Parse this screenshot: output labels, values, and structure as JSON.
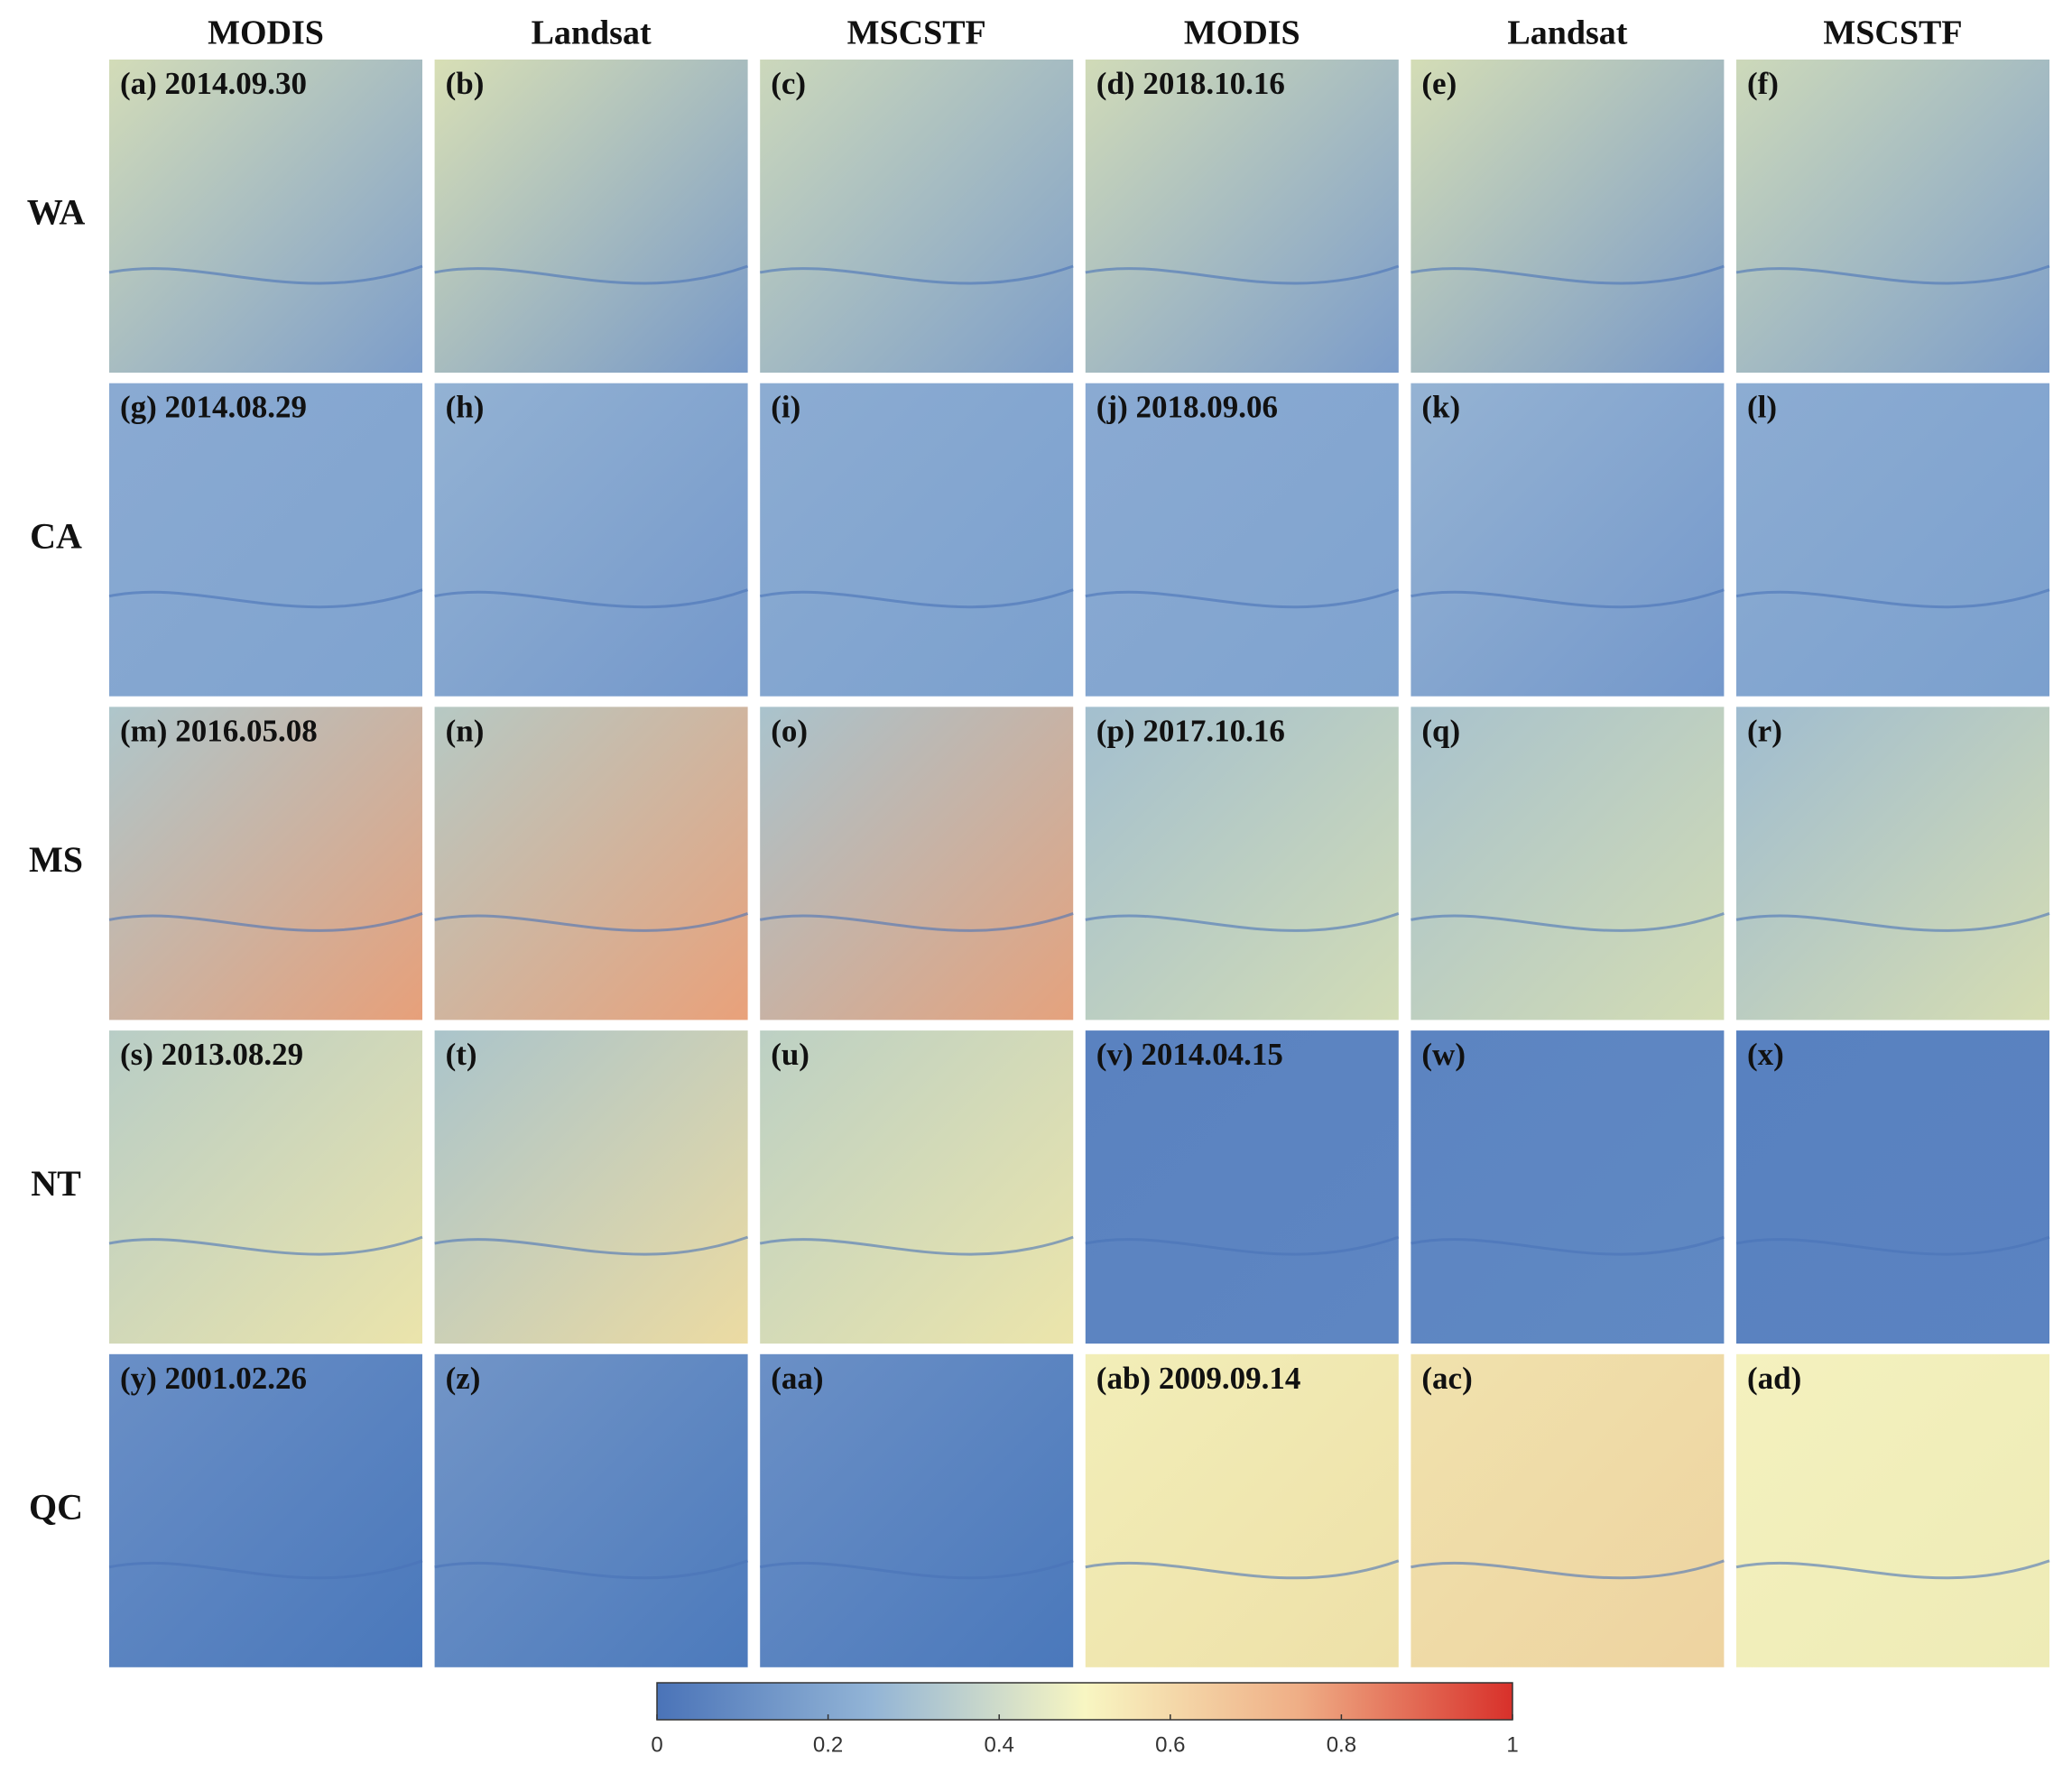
{
  "columns": [
    "MODIS",
    "Landsat",
    "MSCSTF",
    "MODIS",
    "Landsat",
    "MSCSTF"
  ],
  "rows": [
    {
      "label": "WA",
      "panels": [
        "(a) 2014.09.30",
        "(b)",
        "(c)",
        "(d) 2018.10.16",
        "(e)",
        "(f)"
      ]
    },
    {
      "label": "CA",
      "panels": [
        "(g) 2014.08.29",
        "(h)",
        "(i)",
        "(j) 2018.09.06",
        "(k)",
        "(l)"
      ]
    },
    {
      "label": "MS",
      "panels": [
        "(m) 2016.05.08",
        "(n)",
        "(o)",
        "(p) 2017.10.16",
        "(q)",
        "(r)"
      ]
    },
    {
      "label": "NT",
      "panels": [
        "(s) 2013.08.29",
        "(t)",
        "(u)",
        "(v) 2014.04.15",
        "(w)",
        "(x)"
      ]
    },
    {
      "label": "QC",
      "panels": [
        "(y) 2001.02.26",
        "(z)",
        "(aa)",
        "(ab) 2009.09.14",
        "(ac)",
        "(ad)"
      ]
    }
  ],
  "colorbar": {
    "lim": [
      0,
      1
    ],
    "ticks": [
      0,
      0.2,
      0.4,
      0.6,
      0.8,
      1
    ]
  }
}
